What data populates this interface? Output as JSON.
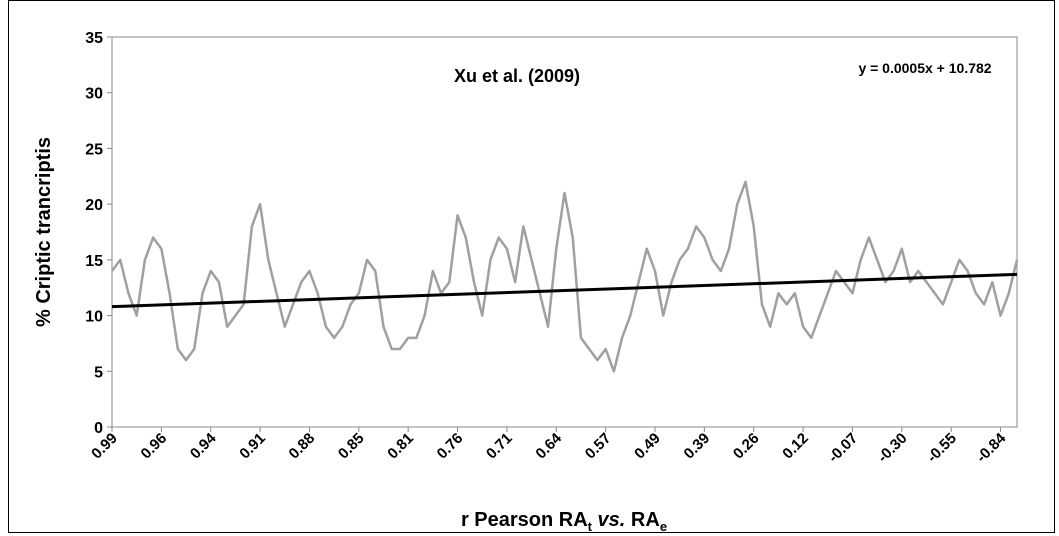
{
  "chart_data": {
    "type": "line",
    "y_label": "% Criptic trancriptis",
    "x_label": {
      "pre": "r Pearson RA",
      "sub1": "t",
      "mid": " vs.",
      "post": " RA",
      "sub2": "e"
    },
    "annotations": [
      "Xu et al. (2009)"
    ],
    "categories": [
      "0.99",
      null,
      null,
      null,
      null,
      null,
      "0.96",
      null,
      null,
      null,
      null,
      null,
      "0.94",
      null,
      null,
      null,
      null,
      null,
      "0.91",
      null,
      null,
      null,
      null,
      null,
      "0.88",
      null,
      null,
      null,
      null,
      null,
      "0.85",
      null,
      null,
      null,
      null,
      null,
      "0.81",
      null,
      null,
      null,
      null,
      null,
      "0.76",
      null,
      null,
      null,
      null,
      null,
      "0.71",
      null,
      null,
      null,
      null,
      null,
      "0.64",
      null,
      null,
      null,
      null,
      null,
      "0.57",
      null,
      null,
      null,
      null,
      null,
      "0.49",
      null,
      null,
      null,
      null,
      null,
      "0.39",
      null,
      null,
      null,
      null,
      null,
      "0.26",
      null,
      null,
      null,
      null,
      null,
      "0.12",
      null,
      null,
      null,
      null,
      null,
      "-0.07",
      null,
      null,
      null,
      null,
      null,
      "-0.30",
      null,
      null,
      null,
      null,
      null,
      "-0.55",
      null,
      null,
      null,
      null,
      null,
      "-0.84",
      null,
      null
    ],
    "series": [
      {
        "color": "#a0a0a0",
        "values": [
          14,
          15,
          12,
          10,
          15,
          17,
          16,
          12,
          7,
          6,
          7,
          12,
          14,
          13,
          9,
          10,
          11,
          18,
          20,
          15,
          12,
          9,
          11,
          13,
          14,
          12,
          9,
          8,
          9,
          11,
          12,
          15,
          14,
          9,
          7,
          7,
          8,
          8,
          10,
          14,
          12,
          13,
          19,
          17,
          13,
          10,
          15,
          17,
          16,
          13,
          18,
          15,
          12,
          9,
          16,
          21,
          17,
          8,
          7,
          6,
          7,
          5,
          8,
          10,
          13,
          16,
          14,
          10,
          13,
          15,
          16,
          18,
          17,
          15,
          14,
          16,
          20,
          22,
          18,
          11,
          9,
          12,
          11,
          12,
          9,
          8,
          10,
          12,
          14,
          13,
          12,
          15,
          17,
          15,
          13,
          14,
          16,
          13,
          14,
          13,
          12,
          11,
          13,
          15,
          14,
          12,
          11,
          13,
          10,
          12,
          15
        ]
      }
    ],
    "trendline": {
      "equation": "y = 0.0005x + 10.782",
      "color": "#000000",
      "values": [
        10.8,
        13.7
      ]
    },
    "ylim": [
      0,
      35
    ],
    "yticks": [
      0,
      5,
      10,
      15,
      20,
      25,
      30,
      35
    ],
    "grid": false
  }
}
